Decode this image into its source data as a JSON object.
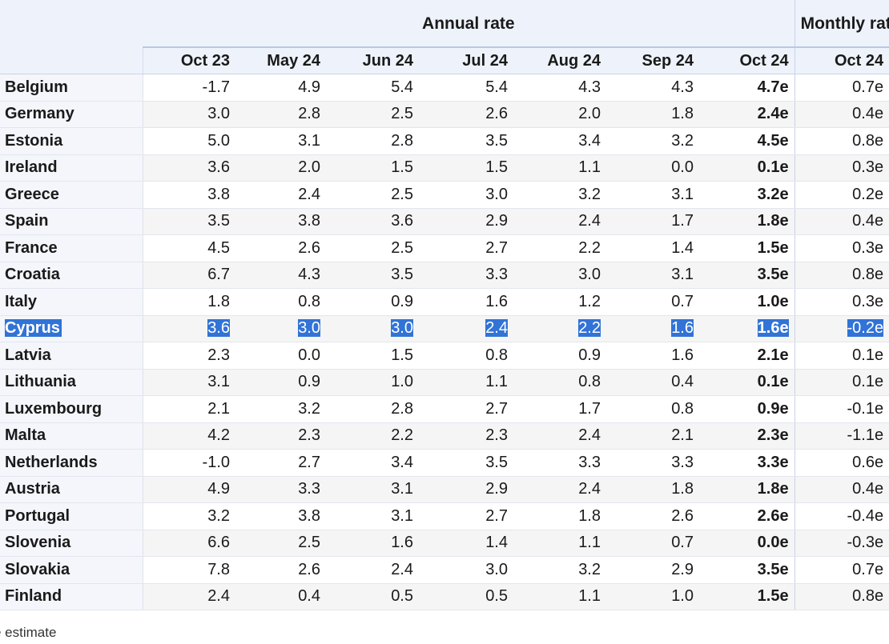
{
  "table": {
    "group_headers": {
      "annual": "Annual rate",
      "monthly": "Monthly rate"
    },
    "columns": [
      "Oct 23",
      "May 24",
      "Jun 24",
      "Jul 24",
      "Aug 24",
      "Sep 24",
      "Oct 24",
      "Oct 24"
    ],
    "selected_row": "Cyprus",
    "rows": [
      {
        "country": "Belgium",
        "values": [
          "-1.7",
          "4.9",
          "5.4",
          "5.4",
          "4.3",
          "4.3",
          "4.7e",
          "0.7e"
        ]
      },
      {
        "country": "Germany",
        "values": [
          "3.0",
          "2.8",
          "2.5",
          "2.6",
          "2.0",
          "1.8",
          "2.4e",
          "0.4e"
        ]
      },
      {
        "country": "Estonia",
        "values": [
          "5.0",
          "3.1",
          "2.8",
          "3.5",
          "3.4",
          "3.2",
          "4.5e",
          "0.8e"
        ]
      },
      {
        "country": "Ireland",
        "values": [
          "3.6",
          "2.0",
          "1.5",
          "1.5",
          "1.1",
          "0.0",
          "0.1e",
          "0.3e"
        ]
      },
      {
        "country": "Greece",
        "values": [
          "3.8",
          "2.4",
          "2.5",
          "3.0",
          "3.2",
          "3.1",
          "3.2e",
          "0.2e"
        ]
      },
      {
        "country": "Spain",
        "values": [
          "3.5",
          "3.8",
          "3.6",
          "2.9",
          "2.4",
          "1.7",
          "1.8e",
          "0.4e"
        ]
      },
      {
        "country": "France",
        "values": [
          "4.5",
          "2.6",
          "2.5",
          "2.7",
          "2.2",
          "1.4",
          "1.5e",
          "0.3e"
        ]
      },
      {
        "country": "Croatia",
        "values": [
          "6.7",
          "4.3",
          "3.5",
          "3.3",
          "3.0",
          "3.1",
          "3.5e",
          "0.8e"
        ]
      },
      {
        "country": "Italy",
        "values": [
          "1.8",
          "0.8",
          "0.9",
          "1.6",
          "1.2",
          "0.7",
          "1.0e",
          "0.3e"
        ]
      },
      {
        "country": "Cyprus",
        "values": [
          "3.6",
          "3.0",
          "3.0",
          "2.4",
          "2.2",
          "1.6",
          "1.6e",
          "-0.2e"
        ]
      },
      {
        "country": "Latvia",
        "values": [
          "2.3",
          "0.0",
          "1.5",
          "0.8",
          "0.9",
          "1.6",
          "2.1e",
          "0.1e"
        ]
      },
      {
        "country": "Lithuania",
        "values": [
          "3.1",
          "0.9",
          "1.0",
          "1.1",
          "0.8",
          "0.4",
          "0.1e",
          "0.1e"
        ]
      },
      {
        "country": "Luxembourg",
        "values": [
          "2.1",
          "3.2",
          "2.8",
          "2.7",
          "1.7",
          "0.8",
          "0.9e",
          "-0.1e"
        ]
      },
      {
        "country": "Malta",
        "values": [
          "4.2",
          "2.3",
          "2.2",
          "2.3",
          "2.4",
          "2.1",
          "2.3e",
          "-1.1e"
        ]
      },
      {
        "country": "Netherlands",
        "values": [
          "-1.0",
          "2.7",
          "3.4",
          "3.5",
          "3.3",
          "3.3",
          "3.3e",
          "0.6e"
        ]
      },
      {
        "country": "Austria",
        "values": [
          "4.9",
          "3.3",
          "3.1",
          "2.9",
          "2.4",
          "1.8",
          "1.8e",
          "0.4e"
        ]
      },
      {
        "country": "Portugal",
        "values": [
          "3.2",
          "3.8",
          "3.1",
          "2.7",
          "1.8",
          "2.6",
          "2.6e",
          "-0.4e"
        ]
      },
      {
        "country": "Slovenia",
        "values": [
          "6.6",
          "2.5",
          "1.6",
          "1.4",
          "1.1",
          "0.7",
          "0.0e",
          "-0.3e"
        ]
      },
      {
        "country": "Slovakia",
        "values": [
          "7.8",
          "2.6",
          "2.4",
          "3.0",
          "3.2",
          "2.9",
          "3.5e",
          "0.7e"
        ]
      },
      {
        "country": "Finland",
        "values": [
          "2.4",
          "0.4",
          "0.5",
          "0.5",
          "1.1",
          "1.0",
          "1.5e",
          "0.8e"
        ]
      }
    ]
  },
  "footnote": "e estimate",
  "colors": {
    "header_bg": "#eef3fb",
    "selection_bg": "#3173d6",
    "selection_text": "#ffffff",
    "stripe_bg": "#f5f5f5",
    "country_bg": "#f4f6fb"
  }
}
